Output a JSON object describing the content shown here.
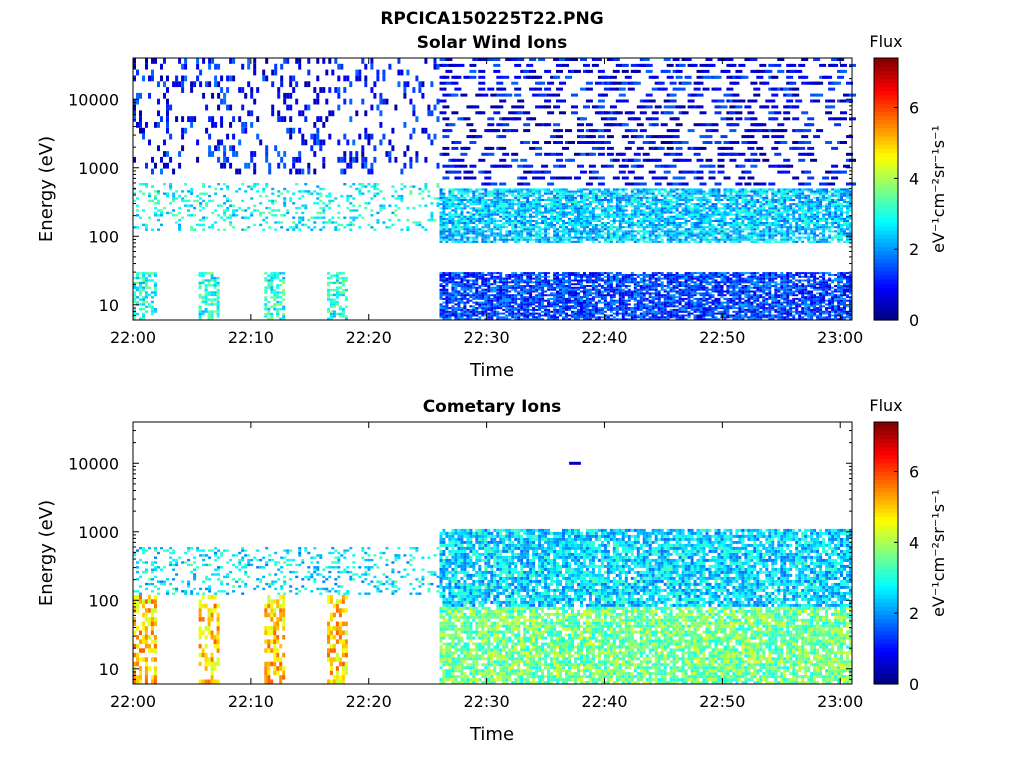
{
  "figure": {
    "title": "RPCICA150225T22.PNG"
  },
  "colors": {
    "colormap": [
      "#00007f",
      "#0000ff",
      "#007fff",
      "#00ffff",
      "#7fff7f",
      "#ffff00",
      "#ff7f00",
      "#ff0000",
      "#7f0000"
    ],
    "axis": "#000000",
    "background": "#ffffff"
  },
  "colorbar": {
    "header": "Flux",
    "unit_label": "eV⁻¹cm⁻²sr⁻¹s⁻¹",
    "ticks": [
      "0",
      "2",
      "4",
      "6"
    ],
    "range": [
      0,
      7.4
    ]
  },
  "chart_data": [
    {
      "type": "heatmap",
      "title": "Solar Wind Ions",
      "xlabel": "Time",
      "ylabel": "Energy (eV)",
      "x_ticks": [
        "22:00",
        "22:10",
        "22:20",
        "22:30",
        "22:40",
        "22:50",
        "23:00"
      ],
      "y_ticks": [
        "10",
        "100",
        "1000",
        "10000"
      ],
      "xlim": [
        "22:00",
        "23:01"
      ],
      "ylim": [
        6,
        40000
      ],
      "y_scale": "log",
      "grid": false,
      "value_range": [
        0,
        7.4
      ],
      "features": [
        {
          "time_range": [
            "22:00",
            "22:26"
          ],
          "energy_range": [
            120,
            600
          ],
          "flux": 2.8,
          "note": "sparse scattered band"
        },
        {
          "time_range": [
            "22:00",
            "22:20"
          ],
          "energy_range": [
            6,
            30
          ],
          "flux": 3.0,
          "note": "intermittent low-energy spikes"
        },
        {
          "time_range": [
            "22:00",
            "22:26"
          ],
          "energy_range": [
            800,
            40000
          ],
          "flux": 1.0,
          "note": "sparse isolated pixels"
        },
        {
          "time_range": [
            "22:26",
            "23:01"
          ],
          "energy_range": [
            80,
            500
          ],
          "flux": 2.4,
          "note": "dense band"
        },
        {
          "time_range": [
            "22:26",
            "23:01"
          ],
          "energy_range": [
            500,
            40000
          ],
          "flux": 0.9,
          "note": "horizontal stripes"
        },
        {
          "time_range": [
            "22:26",
            "23:01"
          ],
          "energy_range": [
            6,
            30
          ],
          "flux": 1.4,
          "note": "low-energy blocks"
        }
      ]
    },
    {
      "type": "heatmap",
      "title": "Cometary Ions",
      "xlabel": "Time",
      "ylabel": "Energy (eV)",
      "x_ticks": [
        "22:00",
        "22:10",
        "22:20",
        "22:30",
        "22:40",
        "22:50",
        "23:00"
      ],
      "y_ticks": [
        "10",
        "100",
        "1000",
        "10000"
      ],
      "xlim": [
        "22:00",
        "23:01"
      ],
      "ylim": [
        6,
        40000
      ],
      "y_scale": "log",
      "grid": false,
      "value_range": [
        0,
        7.4
      ],
      "features": [
        {
          "time_range": [
            "22:00",
            "22:26"
          ],
          "energy_range": [
            120,
            600
          ],
          "flux": 2.6,
          "note": "scattered band"
        },
        {
          "time_range": [
            "22:00",
            "22:20"
          ],
          "energy_range": [
            6,
            120
          ],
          "flux": 5.0,
          "note": "vertical bursts reaching orange"
        },
        {
          "time_range": [
            "22:26",
            "23:01"
          ],
          "energy_range": [
            80,
            1100
          ],
          "flux": 2.5,
          "note": "dense band"
        },
        {
          "time_range": [
            "22:26",
            "23:01"
          ],
          "energy_range": [
            6,
            80
          ],
          "flux": 3.6,
          "note": "green-yellow low-energy blocks"
        },
        {
          "time_range": [
            "22:37",
            "22:38"
          ],
          "energy_range": [
            9500,
            10500
          ],
          "flux": 0.5,
          "note": "isolated dark pixel"
        }
      ]
    }
  ]
}
